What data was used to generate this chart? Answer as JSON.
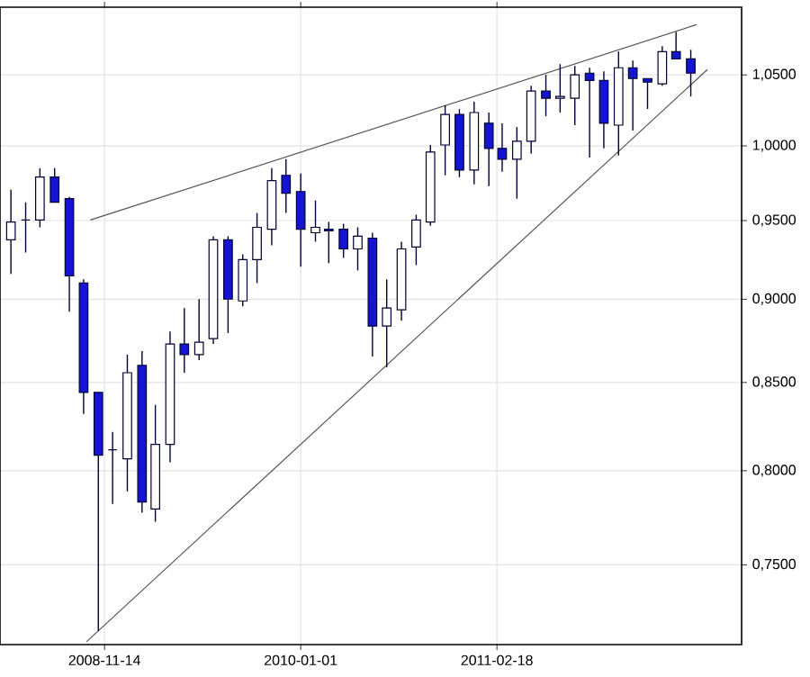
{
  "chart_data": {
    "type": "candlestick",
    "log": true,
    "grid": true,
    "colors": [
      "#ffffff",
      "#000033",
      "#ffffff",
      "#1414d2",
      "#1414d2",
      "#1414d2",
      "#1414d2",
      "#000033",
      "#ffffff",
      "#1414d2",
      "#ffffff",
      "#ffffff",
      "#1414d2",
      "#ffffff",
      "#ffffff",
      "#1414d2",
      "#ffffff",
      "#ffffff",
      "#ffffff",
      "#1414d2",
      "#1414d2",
      "#ffffff",
      "#1414d2",
      "#1414d2",
      "#ffffff",
      "#1414d2",
      "#ffffff",
      "#ffffff",
      "#ffffff",
      "#ffffff",
      "#ffffff",
      "#1414d2",
      "#ffffff",
      "#1414d2",
      "#1414d2",
      "#ffffff",
      "#ffffff",
      "#1414d2",
      "#ffffff",
      "#ffffff",
      "#1414d2",
      "#1414d2",
      "#ffffff",
      "#1414d2",
      "#1414d2",
      "#ffffff",
      "#1414d2",
      "#1414d2"
    ],
    "x": [
      "2008-05",
      "2008-06",
      "2008-07",
      "2008-08",
      "2008-09",
      "2008-10",
      "2008-11",
      "2008-12",
      "2009-01",
      "2009-02",
      "2009-03",
      "2009-04",
      "2009-05",
      "2009-06",
      "2009-07",
      "2009-08",
      "2009-09",
      "2009-10",
      "2009-11",
      "2009-12",
      "2010-01",
      "2010-02",
      "2010-03",
      "2010-04",
      "2010-05",
      "2010-06",
      "2010-07",
      "2010-08",
      "2010-09",
      "2010-10",
      "2010-11",
      "2010-12",
      "2011-01",
      "2011-02",
      "2011-03",
      "2011-04",
      "2011-05",
      "2011-06",
      "2011-07",
      "2011-08",
      "2011-09",
      "2011-10",
      "2011-11",
      "2011-12",
      "2012-01",
      "2012-02",
      "2012-03",
      "2012-04"
    ],
    "ohlc": [
      [
        0.9375,
        0.9704,
        0.9158,
        0.9491
      ],
      [
        0.9503,
        0.962,
        0.9294,
        0.9503
      ],
      [
        0.9503,
        0.9848,
        0.9456,
        0.9788
      ],
      [
        0.9788,
        0.9848,
        0.962,
        0.962
      ],
      [
        0.9644,
        0.9656,
        0.8924,
        0.9146
      ],
      [
        0.9101,
        0.9124,
        0.8318,
        0.8442
      ],
      [
        0.8442,
        0.8442,
        0.7166,
        0.8086
      ],
      [
        0.8116,
        0.8216,
        0.7821,
        0.8116
      ],
      [
        0.8066,
        0.8664,
        0.7889,
        0.8557
      ],
      [
        0.86,
        0.8685,
        0.7773,
        0.7831
      ],
      [
        0.7793,
        0.837,
        0.7726,
        0.8146
      ],
      [
        0.8146,
        0.8803,
        0.8046,
        0.8728
      ],
      [
        0.8728,
        0.8946,
        0.8557,
        0.8664
      ],
      [
        0.8664,
        0.9001,
        0.8632,
        0.8739
      ],
      [
        0.876,
        0.9398,
        0.8728,
        0.9375
      ],
      [
        0.9375,
        0.9398,
        0.8793,
        0.9001
      ],
      [
        0.899,
        0.9283,
        0.8957,
        0.9248
      ],
      [
        0.9248,
        0.955,
        0.9101,
        0.9456
      ],
      [
        0.9444,
        0.9848,
        0.934,
        0.9764
      ],
      [
        0.98,
        0.9909,
        0.955,
        0.968
      ],
      [
        0.9692,
        0.9812,
        0.9203,
        0.9444
      ],
      [
        0.9421,
        0.9632,
        0.9363,
        0.9456
      ],
      [
        0.9444,
        0.9491,
        0.9226,
        0.9433
      ],
      [
        0.9444,
        0.9479,
        0.926,
        0.9317
      ],
      [
        0.9317,
        0.9456,
        0.918,
        0.9398
      ],
      [
        0.9386,
        0.9421,
        0.8653,
        0.8836
      ],
      [
        0.8836,
        0.9124,
        0.8589,
        0.8946
      ],
      [
        0.8935,
        0.9363,
        0.8869,
        0.9317
      ],
      [
        0.9329,
        0.9538,
        0.9214,
        0.9503
      ],
      [
        0.9491,
        1.0007,
        0.9467,
        0.9958
      ],
      [
        1.0007,
        1.0283,
        0.98,
        1.0219
      ],
      [
        1.0219,
        1.0257,
        0.9788,
        0.9836
      ],
      [
        0.9836,
        1.0308,
        0.974,
        1.0232
      ],
      [
        1.0157,
        1.0232,
        0.9728,
        0.9983
      ],
      [
        0.9983,
        1.0157,
        0.9824,
        0.9909
      ],
      [
        0.9909,
        1.0131,
        0.9644,
        1.0032
      ],
      [
        1.0032,
        1.0423,
        0.9946,
        1.0384
      ],
      [
        1.0384,
        1.05,
        1.0207,
        1.0333
      ],
      [
        1.0333,
        1.0578,
        1.0232,
        1.0346
      ],
      [
        1.0333,
        1.0565,
        1.0144,
        1.05
      ],
      [
        1.0513,
        1.0552,
        0.9921,
        1.0461
      ],
      [
        1.0461,
        1.0526,
        0.9983,
        1.0157
      ],
      [
        1.0144,
        1.067,
        0.9934,
        1.0552
      ],
      [
        1.0552,
        1.0604,
        1.0107,
        1.0474
      ],
      [
        1.0474,
        1.0474,
        1.0257,
        1.0449
      ],
      [
        1.0436,
        1.0709,
        1.0423,
        1.067
      ],
      [
        1.067,
        1.0815,
        1.0617,
        1.0617
      ],
      [
        1.0617,
        1.0683,
        1.0346,
        1.0513
      ]
    ],
    "series": [
      {
        "type": "line",
        "color": "#555555",
        "x": [
          "2008-10-15",
          "2012-04-13"
        ],
        "values": [
          0.9503,
          1.0869
        ]
      },
      {
        "type": "line",
        "color": "#555555",
        "x": [
          "2008-10-07",
          "2012-05-06"
        ],
        "values": [
          0.7113,
          1.0539
        ]
      }
    ],
    "xlim": [
      "2008-04-08",
      "2012-07-17"
    ],
    "xticks": [
      "2008-11-14",
      "2010-01-01",
      "2011-02-18"
    ],
    "ylim": [
      0.71,
      1.1
    ],
    "yticks": [
      {
        "value": 0.75,
        "label": "0,7500"
      },
      {
        "value": 0.8,
        "label": "0,8000"
      },
      {
        "value": 0.85,
        "label": "0,8500"
      },
      {
        "value": 0.9,
        "label": "0,9000"
      },
      {
        "value": 0.95,
        "label": "0,9500"
      },
      {
        "value": 1.0,
        "label": "1,0000"
      },
      {
        "value": 1.05,
        "label": "1,0500"
      }
    ]
  }
}
